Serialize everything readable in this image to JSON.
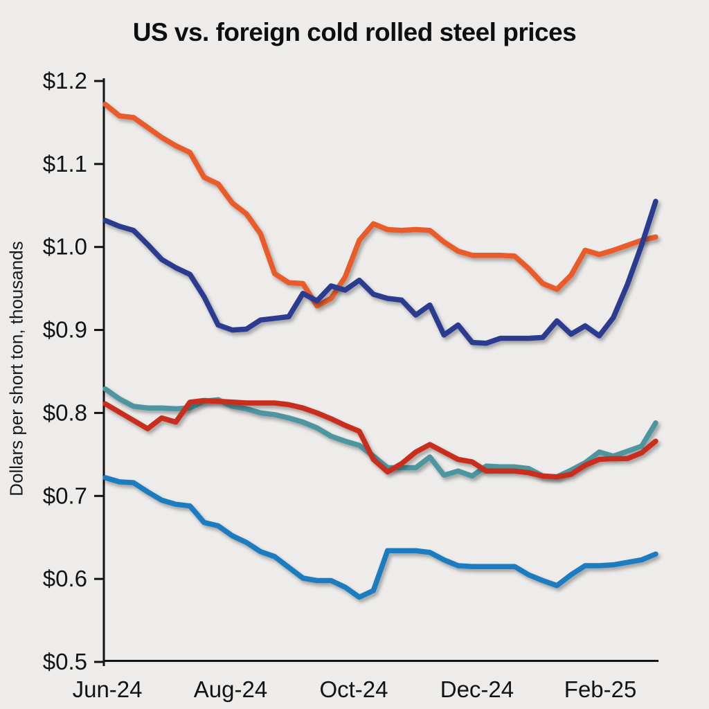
{
  "title": "US vs. foreign cold rolled steel prices",
  "colors": {
    "background": "#EDECEA",
    "axis": "#121212",
    "text": "#121212",
    "shadow": "#000000"
  },
  "y_axis": {
    "title": "Dollars per short ton, thousands",
    "min": 0.5,
    "max": 1.2,
    "ticks": [
      {
        "label": "$0.5",
        "value": 0.5
      },
      {
        "label": "$0.6",
        "value": 0.6
      },
      {
        "label": "$0.7",
        "value": 0.7
      },
      {
        "label": "$0.8",
        "value": 0.8
      },
      {
        "label": "$0.9",
        "value": 0.9
      },
      {
        "label": "$1.0",
        "value": 1.0
      },
      {
        "label": "$1.1",
        "value": 1.1
      },
      {
        "label": "$1.2",
        "value": 1.2
      }
    ]
  },
  "x_axis": {
    "ticks": [
      {
        "label": "Jun-24",
        "week_index": 0.15
      },
      {
        "label": "Aug-24",
        "week_index": 8.88
      },
      {
        "label": "Oct-24",
        "week_index": 17.61
      },
      {
        "label": "Dec-24",
        "week_index": 26.34
      },
      {
        "label": "Feb-25",
        "week_index": 35.08
      }
    ]
  },
  "chart_data": {
    "type": "line",
    "title": "US vs. foreign cold rolled steel prices",
    "ylabel": "Dollars per short ton, thousands",
    "ylim": [
      0.5,
      1.2
    ],
    "grid": false,
    "legend": "none",
    "x_unit": "weeks from Jun-2024 to early Mar-2025",
    "n_points": 40,
    "series": [
      {
        "name": "teal",
        "color": "#4E96A0",
        "values": [
          0.829,
          0.817,
          0.808,
          0.806,
          0.806,
          0.805,
          0.806,
          0.814,
          0.816,
          0.808,
          0.805,
          0.8,
          0.798,
          0.794,
          0.789,
          0.782,
          0.772,
          0.766,
          0.761,
          0.748,
          0.734,
          0.734,
          0.734,
          0.747,
          0.725,
          0.73,
          0.724,
          0.736,
          0.735,
          0.735,
          0.733,
          0.724,
          0.723,
          0.731,
          0.74,
          0.753,
          0.748,
          0.754,
          0.76,
          0.788
        ]
      },
      {
        "name": "red",
        "color": "#C92D1E",
        "values": [
          0.811,
          0.801,
          0.791,
          0.781,
          0.794,
          0.789,
          0.813,
          0.815,
          0.814,
          0.813,
          0.812,
          0.812,
          0.812,
          0.81,
          0.806,
          0.8,
          0.793,
          0.785,
          0.778,
          0.744,
          0.729,
          0.739,
          0.753,
          0.762,
          0.753,
          0.744,
          0.741,
          0.73,
          0.73,
          0.73,
          0.728,
          0.724,
          0.723,
          0.726,
          0.737,
          0.744,
          0.745,
          0.745,
          0.752,
          0.766
        ]
      },
      {
        "name": "light-blue",
        "color": "#1E7BC0",
        "values": [
          0.722,
          0.717,
          0.716,
          0.705,
          0.695,
          0.69,
          0.688,
          0.668,
          0.664,
          0.652,
          0.644,
          0.633,
          0.627,
          0.614,
          0.601,
          0.598,
          0.598,
          0.59,
          0.578,
          0.586,
          0.634,
          0.634,
          0.634,
          0.632,
          0.623,
          0.616,
          0.615,
          0.615,
          0.615,
          0.615,
          0.605,
          0.598,
          0.592,
          0.605,
          0.616,
          0.616,
          0.617,
          0.62,
          0.623,
          0.63
        ]
      },
      {
        "name": "orange",
        "color": "#E95B2C",
        "values": [
          1.172,
          1.158,
          1.156,
          1.144,
          1.132,
          1.122,
          1.114,
          1.084,
          1.076,
          1.053,
          1.04,
          1.016,
          0.968,
          0.957,
          0.956,
          0.929,
          0.938,
          0.964,
          1.008,
          1.028,
          1.021,
          1.02,
          1.021,
          1.02,
          1.006,
          0.995,
          0.99,
          0.99,
          0.99,
          0.989,
          0.974,
          0.956,
          0.949,
          0.966,
          0.996,
          0.991,
          0.996,
          1.002,
          1.008,
          1.012
        ]
      },
      {
        "name": "navy",
        "color": "#2B3A90",
        "values": [
          1.032,
          1.025,
          1.02,
          1.003,
          0.985,
          0.975,
          0.967,
          0.94,
          0.906,
          0.9,
          0.901,
          0.912,
          0.914,
          0.916,
          0.944,
          0.935,
          0.953,
          0.948,
          0.96,
          0.943,
          0.938,
          0.936,
          0.918,
          0.93,
          0.894,
          0.906,
          0.885,
          0.884,
          0.89,
          0.89,
          0.89,
          0.891,
          0.911,
          0.895,
          0.905,
          0.893,
          0.915,
          0.955,
          1.002,
          1.055
        ]
      }
    ]
  }
}
